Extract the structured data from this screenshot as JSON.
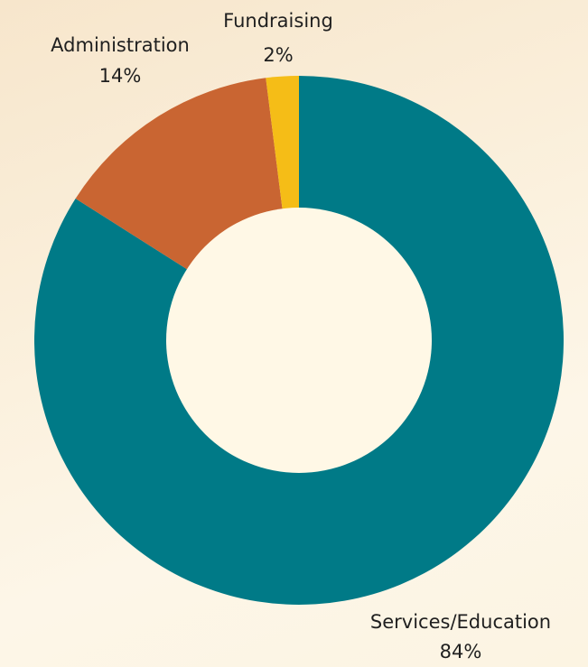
{
  "chart_data": {
    "type": "pie",
    "donut": true,
    "title": "",
    "slices": [
      {
        "label": "Services/Education",
        "value": 84,
        "value_label": "84%",
        "color": "#007a87"
      },
      {
        "label": "Administration",
        "value": 14,
        "value_label": "14%",
        "color": "#c96532"
      },
      {
        "label": "Fundraising",
        "value": 2,
        "value_label": "2%",
        "color": "#f5bd17"
      }
    ],
    "background_color": "#fbf1de",
    "hole_color": "#fff8e6"
  }
}
